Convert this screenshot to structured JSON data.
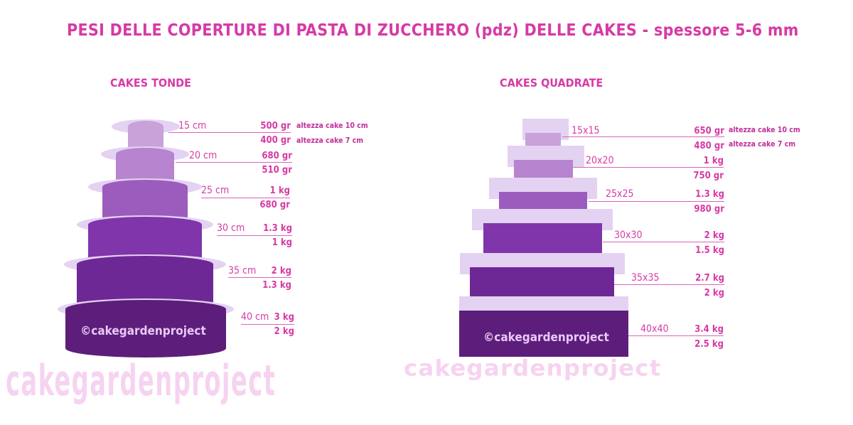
{
  "title": "PESI DELLE COPERTURE DI PASTA DI ZUCCHERO (pdz) DELLE CAKES   -  spessore 5-6 mm",
  "colors": {
    "text": "#d63aa5",
    "note": "#c0309a",
    "board": "#e4d2f2",
    "tiers": [
      "#c8a2d9",
      "#b784cf",
      "#9c5cbd",
      "#8035aa",
      "#6e2895",
      "#5c1e7a"
    ],
    "watermark": "#f6cfef"
  },
  "round": {
    "heading": "CAKES TONDE",
    "copyright": "©cakegardenproject",
    "watermark": "cakegardenproject",
    "notes": [
      "altezza cake 10 cm",
      "altezza cake 7 cm"
    ],
    "tiers": [
      {
        "size": "15 cm",
        "w10": "500 gr",
        "w7": "400 gr"
      },
      {
        "size": "20 cm",
        "w10": "680 gr",
        "w7": "510 gr"
      },
      {
        "size": "25 cm",
        "w10": "1 kg",
        "w7": "680 gr"
      },
      {
        "size": "30 cm",
        "w10": "1.3 kg",
        "w7": "1 kg"
      },
      {
        "size": "35 cm",
        "w10": "2 kg",
        "w7": "1.3 kg"
      },
      {
        "size": "40 cm",
        "w10": "3 kg",
        "w7": "2 kg"
      }
    ]
  },
  "square": {
    "heading": "CAKES QUADRATE",
    "copyright": "©cakegardenproject",
    "watermark": "cakegardenproject",
    "notes": [
      "altezza cake 10 cm",
      "altezza cake 7 cm"
    ],
    "tiers": [
      {
        "size": "15x15",
        "w10": "650 gr",
        "w7": "480 gr"
      },
      {
        "size": "20x20",
        "w10": "1 kg",
        "w7": "750 gr"
      },
      {
        "size": "25x25",
        "w10": "1.3 kg",
        "w7": "980 gr"
      },
      {
        "size": "30x30",
        "w10": "2 kg",
        "w7": "1.5 kg"
      },
      {
        "size": "35x35",
        "w10": "2.7 kg",
        "w7": "2 kg"
      },
      {
        "size": "40x40",
        "w10": "3.4 kg",
        "w7": "2.5 kg"
      }
    ]
  }
}
